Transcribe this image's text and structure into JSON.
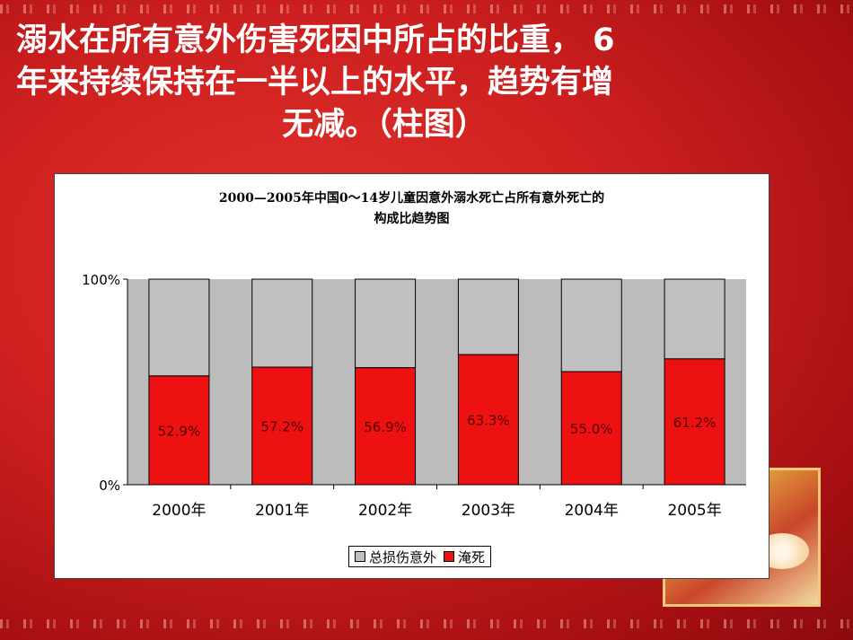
{
  "slide": {
    "title_line1": "溺水在所有意外伤害死因中所占的比重， 6",
    "title_line2": "年来持续保持在一半以上的水平，趋势有增",
    "title_line3": "无减。（柱图）"
  },
  "colors": {
    "background": "#cc1f1f",
    "drowning": "#ee1111",
    "other": "#c0c0c0",
    "plot_area": "#bcbcbc"
  },
  "chart_data": {
    "type": "bar",
    "stacked": "percent",
    "title": "2000—2005年中国0～14岁儿童因意外溺水死亡占所有意外死亡的",
    "subtitle": "构成比趋势图",
    "categories": [
      "2000年",
      "2001年",
      "2002年",
      "2003年",
      "2004年",
      "2005年"
    ],
    "series": [
      {
        "name": "淹死",
        "values": [
          52.9,
          57.2,
          56.9,
          63.3,
          55.0,
          61.2
        ]
      },
      {
        "name": "总损伤意外",
        "values": [
          47.1,
          42.8,
          43.1,
          36.7,
          45.0,
          38.8
        ]
      }
    ],
    "data_labels": [
      "52.9%",
      "57.2%",
      "56.9%",
      "63.3%",
      "55.0%",
      "61.2%"
    ],
    "y_ticks": [
      "100%",
      "0%"
    ],
    "ylim": [
      0,
      100
    ],
    "legend": [
      "总损伤意外",
      "淹死"
    ],
    "legend_position": "bottom"
  }
}
